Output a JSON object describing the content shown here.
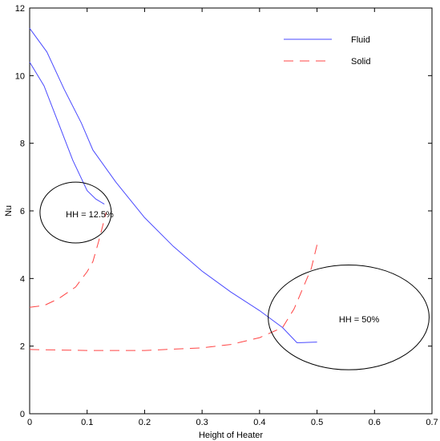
{
  "chart_data": {
    "type": "line",
    "xlabel": "Height of Heater",
    "ylabel": "Nu",
    "xlim": [
      0,
      0.7
    ],
    "ylim": [
      0,
      12
    ],
    "xticks": [
      "0",
      "0.1",
      "0.2",
      "0.3",
      "0.4",
      "0.5",
      "0.6",
      "0.7"
    ],
    "yticks": [
      "0",
      "2",
      "4",
      "6",
      "8",
      "10",
      "12"
    ],
    "grid": false,
    "legend_position": "top-right",
    "series": [
      {
        "name": "Fluid",
        "style": "solid",
        "color": "#4a4aff",
        "points": [
          [
            0,
            11.4
          ],
          [
            0.03,
            10.7
          ],
          [
            0.06,
            9.6
          ],
          [
            0.09,
            8.6
          ],
          [
            0.11,
            7.8
          ],
          [
            0.15,
            6.85
          ],
          [
            0.2,
            5.8
          ],
          [
            0.25,
            4.95
          ],
          [
            0.3,
            4.22
          ],
          [
            0.35,
            3.6
          ],
          [
            0.4,
            3.05
          ],
          [
            0.44,
            2.55
          ],
          [
            0.465,
            2.1
          ],
          [
            0.47,
            2.1
          ],
          [
            0.5,
            2.12
          ]
        ]
      },
      {
        "name": "",
        "style": "solid",
        "color": "#4a4aff",
        "points": [
          [
            0,
            10.4
          ],
          [
            0.025,
            9.7
          ],
          [
            0.05,
            8.6
          ],
          [
            0.075,
            7.5
          ],
          [
            0.1,
            6.6
          ],
          [
            0.115,
            6.35
          ],
          [
            0.13,
            6.2
          ]
        ]
      },
      {
        "name": "Solid",
        "style": "dashed",
        "color": "#ff4444",
        "points": [
          [
            0,
            1.9
          ],
          [
            0.1,
            1.87
          ],
          [
            0.2,
            1.87
          ],
          [
            0.3,
            1.95
          ],
          [
            0.35,
            2.05
          ],
          [
            0.4,
            2.25
          ],
          [
            0.44,
            2.55
          ],
          [
            0.46,
            3.1
          ],
          [
            0.47,
            3.5
          ],
          [
            0.49,
            4.3
          ],
          [
            0.5,
            5.0
          ]
        ]
      },
      {
        "name": "",
        "style": "dashed",
        "color": "#ff4444",
        "points": [
          [
            0,
            3.15
          ],
          [
            0.025,
            3.2
          ],
          [
            0.05,
            3.4
          ],
          [
            0.08,
            3.75
          ],
          [
            0.1,
            4.2
          ],
          [
            0.11,
            4.5
          ],
          [
            0.12,
            5.1
          ],
          [
            0.133,
            5.95
          ]
        ]
      }
    ],
    "annotations": [
      {
        "text": "HH = 12.5%",
        "cx": 0.08,
        "cy": 5.95,
        "rx": 0.062,
        "ry": 0.9,
        "tx": 0.063,
        "ty": 5.9
      },
      {
        "text": "HH = 50%",
        "cx": 0.555,
        "cy": 2.85,
        "rx": 0.14,
        "ry": 1.55,
        "tx": 0.538,
        "ty": 2.8
      }
    ]
  }
}
